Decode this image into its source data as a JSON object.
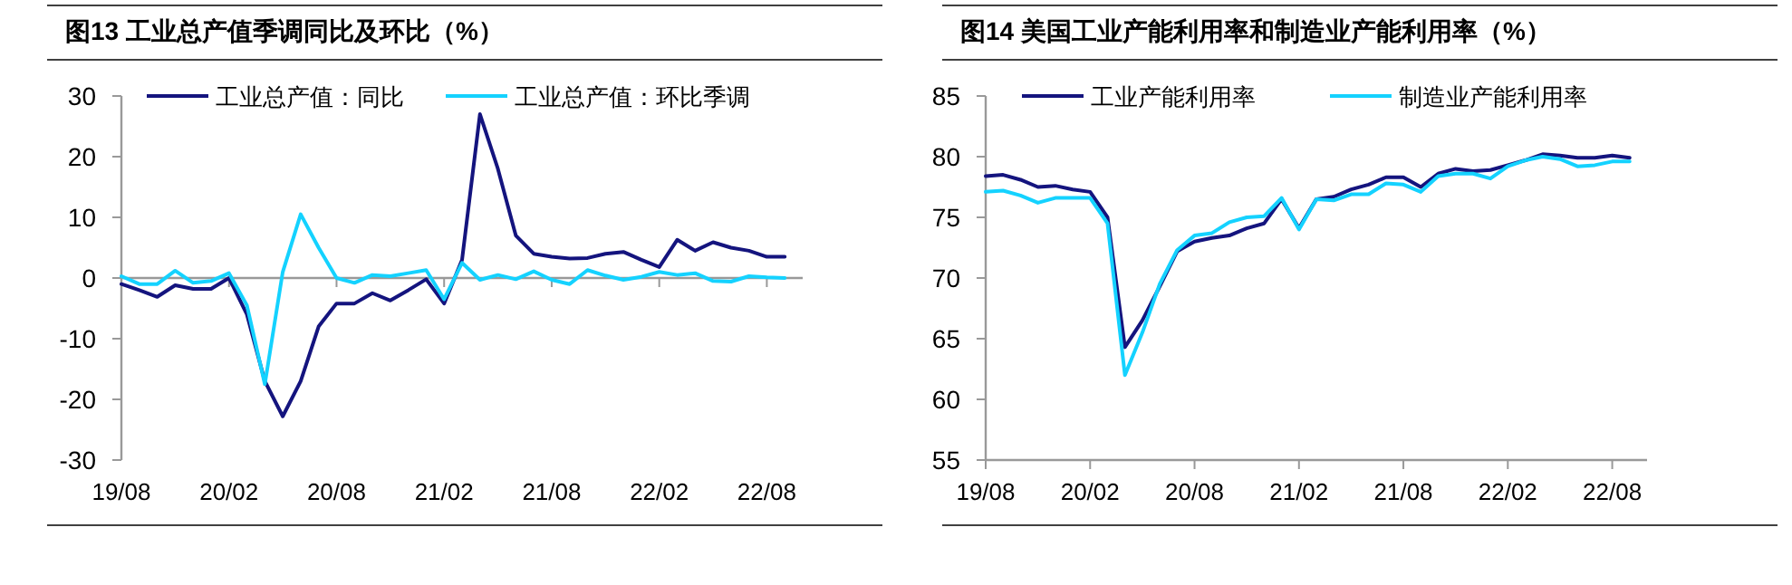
{
  "chart_data": [
    {
      "type": "line",
      "title": "图13 工业总产值季调同比及环比（%）",
      "legend": "top",
      "grid": false,
      "ref_lines": [
        {
          "axis": "y",
          "value": 0,
          "color": "#999999"
        }
      ],
      "categories": [
        "19/08",
        null,
        null,
        null,
        null,
        null,
        "20/02",
        null,
        null,
        null,
        null,
        null,
        "20/08",
        null,
        null,
        null,
        null,
        null,
        "21/02",
        null,
        null,
        null,
        null,
        null,
        "21/08",
        null,
        null,
        null,
        null,
        null,
        "22/02",
        null,
        null,
        null,
        null,
        null,
        "22/08",
        null
      ],
      "ylim": [
        -30,
        30
      ],
      "yticks": [
        -30,
        -20,
        -10,
        0,
        10,
        20,
        30
      ],
      "series": [
        {
          "name": "工业总产值：同比",
          "color": "#14147e",
          "values": [
            -1,
            -2,
            -3.1,
            -1.2,
            -1.8,
            -1.8,
            0,
            -6,
            -17,
            -22.8,
            -17,
            -8,
            -4.2,
            -4.2,
            -2.5,
            -3.7,
            -2,
            -0.2,
            -4.2,
            3,
            27,
            18,
            7,
            4,
            3.5,
            3.2,
            3.3,
            4,
            4.3,
            3,
            1.8,
            6.3,
            4.5,
            5.9,
            5,
            4.5,
            3.5,
            3.5
          ]
        },
        {
          "name": "工业总产值：环比季调",
          "color": "#14d2ff",
          "values": [
            0.3,
            -1,
            -1,
            1.2,
            -0.8,
            -0.5,
            0.8,
            -4.5,
            -17.5,
            1,
            10.5,
            5,
            0,
            -0.8,
            0.5,
            0.3,
            0.8,
            1.3,
            -3.5,
            2.5,
            -0.3,
            0.5,
            -0.2,
            1.1,
            -0.3,
            -1,
            1.3,
            0.4,
            -0.3,
            0.2,
            1,
            0.5,
            0.8,
            -0.5,
            -0.6,
            0.3,
            0.1,
            0
          ]
        }
      ]
    },
    {
      "type": "line",
      "title": "图14 美国工业产能利用率和制造业产能利用率（%）",
      "legend": "top",
      "grid": false,
      "categories": [
        "19/08",
        null,
        null,
        null,
        null,
        null,
        "20/02",
        null,
        null,
        null,
        null,
        null,
        "20/08",
        null,
        null,
        null,
        null,
        null,
        "21/02",
        null,
        null,
        null,
        null,
        null,
        "21/08",
        null,
        null,
        null,
        null,
        null,
        "22/02",
        null,
        null,
        null,
        null,
        null,
        "22/08",
        null
      ],
      "ylim": [
        55,
        85
      ],
      "yticks": [
        55,
        60,
        65,
        70,
        75,
        80,
        85
      ],
      "series": [
        {
          "name": "工业产能利用率",
          "color": "#14147e",
          "values": [
            78.4,
            78.5,
            78.1,
            77.5,
            77.6,
            77.3,
            77.1,
            75,
            64.3,
            66.5,
            69.3,
            72.2,
            73,
            73.3,
            73.5,
            74.1,
            74.5,
            76.5,
            74.1,
            76.5,
            76.7,
            77.3,
            77.7,
            78.3,
            78.3,
            77.5,
            78.6,
            79,
            78.8,
            78.9,
            79.3,
            79.7,
            80.2,
            80.1,
            79.9,
            79.9,
            80.1,
            79.9
          ]
        },
        {
          "name": "制造业产能利用率",
          "color": "#14d2ff",
          "values": [
            77.1,
            77.2,
            76.8,
            76.2,
            76.6,
            76.6,
            76.6,
            74.5,
            62,
            65.5,
            69.5,
            72.3,
            73.5,
            73.7,
            74.6,
            75,
            75.1,
            76.6,
            74,
            76.5,
            76.4,
            76.9,
            76.9,
            77.8,
            77.7,
            77.1,
            78.4,
            78.6,
            78.6,
            78.2,
            79.2,
            79.7,
            80,
            79.8,
            79.2,
            79.3,
            79.6,
            79.6
          ]
        }
      ]
    }
  ]
}
